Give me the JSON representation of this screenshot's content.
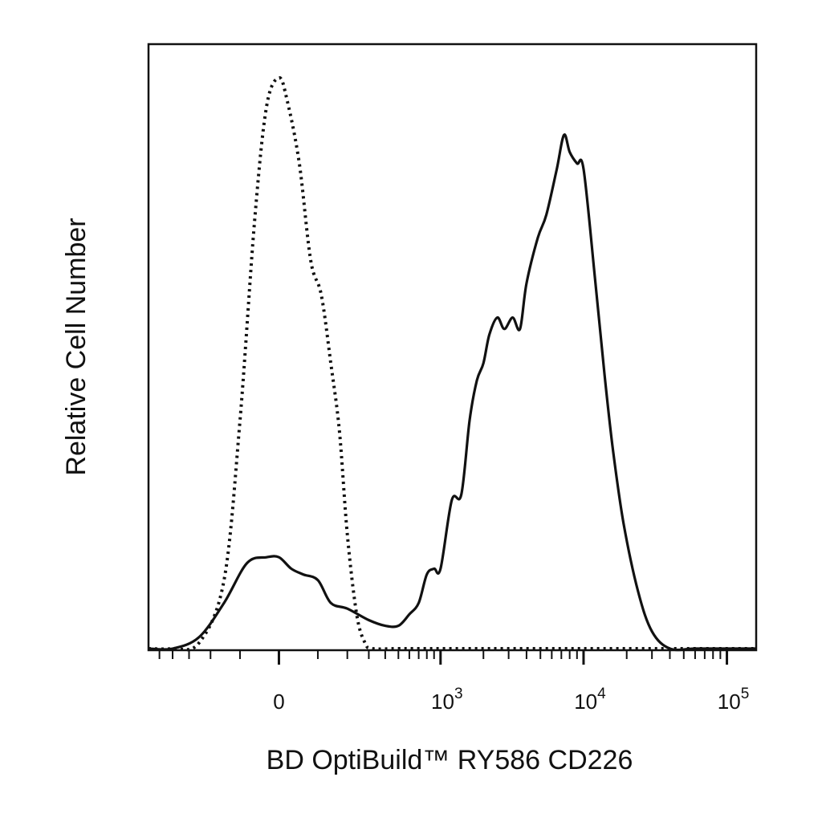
{
  "chart_data": {
    "type": "line",
    "title": "",
    "xlabel": "BD OptiBuild™ RY586 CD226",
    "ylabel": "Relative Cell Number",
    "x_scale": "biexponential",
    "xlim": [
      -600,
      160000
    ],
    "ylim": [
      0,
      100
    ],
    "x_tick_labels": [
      {
        "value": 0,
        "base": "0",
        "exp": ""
      },
      {
        "value": 1000,
        "base": "10",
        "exp": "3"
      },
      {
        "value": 10000,
        "base": "10",
        "exp": "4"
      },
      {
        "value": 100000,
        "base": "10",
        "exp": "5"
      }
    ],
    "grid": false,
    "legend": "none",
    "series": [
      {
        "line_style": "dotted",
        "points": [
          [
            -600,
            0
          ],
          [
            -400,
            0
          ],
          [
            -250,
            1
          ],
          [
            -150,
            12
          ],
          [
            -100,
            40
          ],
          [
            -60,
            75
          ],
          [
            -30,
            95
          ],
          [
            0,
            100
          ],
          [
            20,
            96
          ],
          [
            50,
            85
          ],
          [
            80,
            68
          ],
          [
            110,
            62
          ],
          [
            140,
            50
          ],
          [
            170,
            38
          ],
          [
            200,
            20
          ],
          [
            240,
            6
          ],
          [
            280,
            1
          ],
          [
            320,
            0
          ],
          [
            500,
            0
          ],
          [
            1000,
            0
          ],
          [
            10000,
            0
          ],
          [
            100000,
            0
          ],
          [
            160000,
            0
          ]
        ]
      },
      {
        "line_style": "solid",
        "points": [
          [
            -600,
            0
          ],
          [
            -400,
            0
          ],
          [
            -250,
            2
          ],
          [
            -150,
            8
          ],
          [
            -80,
            15
          ],
          [
            -30,
            16
          ],
          [
            0,
            16
          ],
          [
            30,
            14
          ],
          [
            60,
            13
          ],
          [
            100,
            12
          ],
          [
            140,
            8
          ],
          [
            200,
            7
          ],
          [
            300,
            5
          ],
          [
            400,
            4
          ],
          [
            500,
            4
          ],
          [
            600,
            6
          ],
          [
            700,
            8
          ],
          [
            800,
            13
          ],
          [
            900,
            14
          ],
          [
            1000,
            14
          ],
          [
            1200,
            26
          ],
          [
            1400,
            27
          ],
          [
            1600,
            40
          ],
          [
            1800,
            47
          ],
          [
            2000,
            50
          ],
          [
            2200,
            55
          ],
          [
            2500,
            58
          ],
          [
            2800,
            56
          ],
          [
            3200,
            58
          ],
          [
            3600,
            56
          ],
          [
            4000,
            64
          ],
          [
            4800,
            72
          ],
          [
            5500,
            76
          ],
          [
            6500,
            84
          ],
          [
            7300,
            90
          ],
          [
            8000,
            87
          ],
          [
            9000,
            85
          ],
          [
            10000,
            84
          ],
          [
            12000,
            65
          ],
          [
            14000,
            48
          ],
          [
            16000,
            35
          ],
          [
            19000,
            22
          ],
          [
            24000,
            10
          ],
          [
            30000,
            3
          ],
          [
            40000,
            0
          ],
          [
            60000,
            0
          ],
          [
            100000,
            0
          ],
          [
            160000,
            0
          ]
        ]
      }
    ]
  }
}
